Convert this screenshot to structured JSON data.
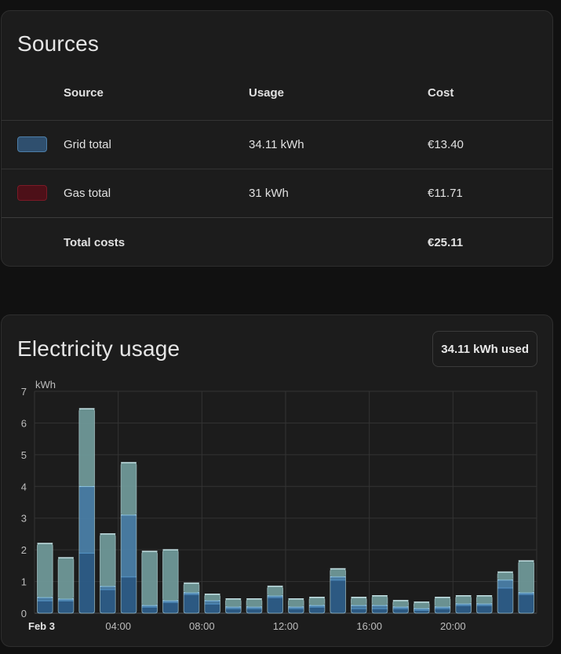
{
  "sources": {
    "title": "Sources",
    "columns": {
      "source": "Source",
      "usage": "Usage",
      "cost": "Cost"
    },
    "rows": [
      {
        "name": "Grid total",
        "usage": "34.11 kWh",
        "cost": "€13.40",
        "fill": "#2f4f6e",
        "border": "#4d7ea8"
      },
      {
        "name": "Gas total",
        "usage": "31 kWh",
        "cost": "€11.71",
        "fill": "#4d1018",
        "border": "#7a1a26"
      }
    ],
    "total": {
      "label": "Total costs",
      "cost": "€25.11"
    }
  },
  "electricity": {
    "title": "Electricity usage",
    "badge": "34.11 kWh used"
  },
  "chart_data": {
    "type": "bar",
    "ylabel": "kWh",
    "ylim": [
      0,
      7
    ],
    "yticks": [
      0,
      1,
      2,
      3,
      4,
      5,
      6,
      7
    ],
    "xtick_labels": [
      {
        "hour": 0,
        "label": "Feb 3",
        "bold": true
      },
      {
        "hour": 4,
        "label": "04:00"
      },
      {
        "hour": 8,
        "label": "08:00"
      },
      {
        "hour": 12,
        "label": "12:00"
      },
      {
        "hour": 16,
        "label": "16:00"
      },
      {
        "hour": 20,
        "label": "20:00"
      }
    ],
    "hours": [
      0,
      1,
      2,
      3,
      4,
      5,
      6,
      7,
      8,
      9,
      10,
      11,
      12,
      13,
      14,
      15,
      16,
      17,
      18,
      19,
      20,
      21,
      22,
      23
    ],
    "series": [
      {
        "values": [
          0.4,
          0.4,
          1.9,
          0.75,
          1.15,
          0.2,
          0.35,
          0.6,
          0.3,
          0.15,
          0.15,
          0.5,
          0.15,
          0.2,
          1.05,
          0.15,
          0.15,
          0.15,
          0.1,
          0.15,
          0.25,
          0.25,
          0.8,
          0.6
        ],
        "color": "#2d5d88",
        "border": "#5a9bd0"
      },
      {
        "values": [
          0.1,
          0.05,
          2.1,
          0.1,
          1.95,
          0.05,
          0.05,
          0.05,
          0.1,
          0.05,
          0.05,
          0.05,
          0.05,
          0.05,
          0.1,
          0.1,
          0.1,
          0.05,
          0.05,
          0.05,
          0.05,
          0.05,
          0.25,
          0.05
        ],
        "color": "#4a7ea6",
        "border": "#8ec8ee"
      },
      {
        "values": [
          1.7,
          1.3,
          2.45,
          1.65,
          1.65,
          1.7,
          1.6,
          0.3,
          0.2,
          0.25,
          0.25,
          0.3,
          0.25,
          0.25,
          0.25,
          0.25,
          0.3,
          0.2,
          0.2,
          0.3,
          0.25,
          0.25,
          0.25,
          1.0
        ],
        "color": "#6f9898",
        "border": "#c5e3e6"
      }
    ]
  }
}
